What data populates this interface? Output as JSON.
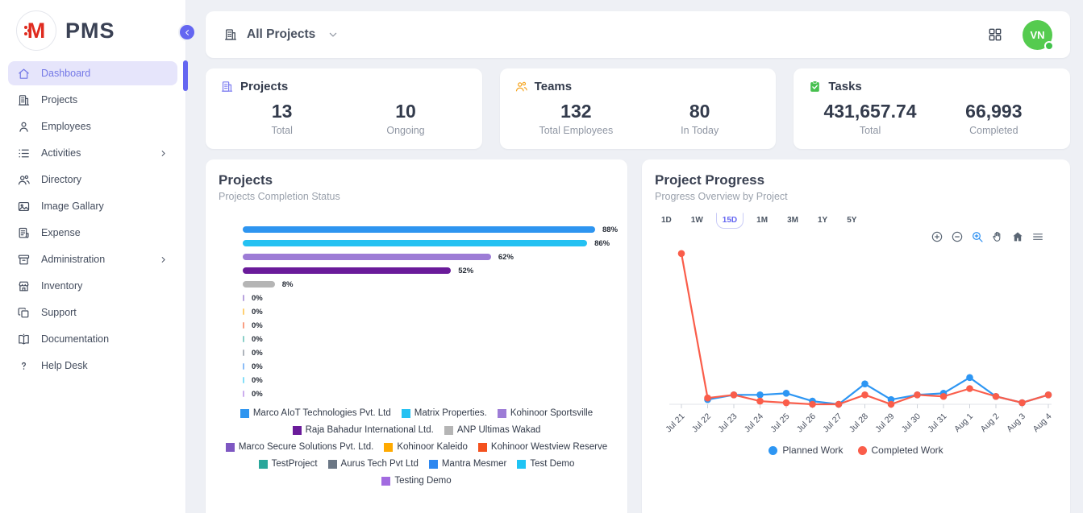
{
  "app": {
    "name": "PMS",
    "logo_letter": "M"
  },
  "sidebar": {
    "items": [
      {
        "label": "Dashboard",
        "icon": "home",
        "active": true,
        "expandable": false
      },
      {
        "label": "Projects",
        "icon": "building",
        "active": false,
        "expandable": false
      },
      {
        "label": "Employees",
        "icon": "person",
        "active": false,
        "expandable": false
      },
      {
        "label": "Activities",
        "icon": "list",
        "active": false,
        "expandable": true
      },
      {
        "label": "Directory",
        "icon": "people",
        "active": false,
        "expandable": false
      },
      {
        "label": "Image Gallary",
        "icon": "image",
        "active": false,
        "expandable": false
      },
      {
        "label": "Expense",
        "icon": "receipt",
        "active": false,
        "expandable": false
      },
      {
        "label": "Administration",
        "icon": "archive",
        "active": false,
        "expandable": true
      },
      {
        "label": "Inventory",
        "icon": "store",
        "active": false,
        "expandable": false
      },
      {
        "label": "Support",
        "icon": "copy",
        "active": false,
        "expandable": false
      },
      {
        "label": "Documentation",
        "icon": "book",
        "active": false,
        "expandable": false
      },
      {
        "label": "Help Desk",
        "icon": "help",
        "active": false,
        "expandable": false
      }
    ]
  },
  "topbar": {
    "filter_label": "All Projects",
    "avatar_initials": "VN"
  },
  "stats": [
    {
      "title": "Projects",
      "icon": "building",
      "icon_color": "#7b7bf0",
      "metrics": [
        {
          "value": "13",
          "label": "Total"
        },
        {
          "value": "10",
          "label": "Ongoing"
        }
      ]
    },
    {
      "title": "Teams",
      "icon": "people",
      "icon_color": "#f5a623",
      "metrics": [
        {
          "value": "132",
          "label": "Total Employees"
        },
        {
          "value": "80",
          "label": "In Today"
        }
      ]
    },
    {
      "title": "Tasks",
      "icon": "clipboard-check",
      "icon_color": "#47c04f",
      "metrics": [
        {
          "value": "431,657.74",
          "label": "Total"
        },
        {
          "value": "66,993",
          "label": "Completed"
        }
      ]
    }
  ],
  "progress_card": {
    "ranges": [
      "1D",
      "1W",
      "15D",
      "1M",
      "3M",
      "1Y",
      "5Y"
    ],
    "selected_range": "15D",
    "toolbar_icons": [
      "zoom-in",
      "zoom-out",
      "zoom-select",
      "pan",
      "home-solid",
      "menu"
    ],
    "toolbar_active": "zoom-select"
  },
  "chart_data": [
    {
      "type": "bar",
      "orientation": "horizontal",
      "title": "Projects",
      "subtitle": "Projects Completion Status",
      "categories": [
        "Marco AIoT Technologies Pvt. Ltd",
        "Matrix Properties.",
        "Kohinoor Sportsville",
        "Raja Bahadur International Ltd.",
        "ANP Ultimas Wakad",
        "Marco Secure Solutions Pvt. Ltd.",
        "Kohinoor Kaleido",
        "Kohinoor Westview Reserve",
        "TestProject",
        "Aurus Tech Pvt Ltd",
        "Mantra Mesmer",
        "Test Demo",
        "Testing Demo"
      ],
      "values": [
        88,
        86,
        62,
        52,
        8,
        0,
        0,
        0,
        0,
        0,
        0,
        0,
        0
      ],
      "value_labels": [
        "88%",
        "86%",
        "62%",
        "52%",
        "8%",
        "0%",
        "0%",
        "0%",
        "0%",
        "0%",
        "0%",
        "0%",
        "0%"
      ],
      "colors": [
        "#2e95f0",
        "#24c1f2",
        "#9d7cd6",
        "#6a1b9a",
        "#b5b5b5",
        "#7e57c2",
        "#ffaa00",
        "#f4511e",
        "#2aa79b",
        "#6b7785",
        "#2d87f0",
        "#1fc4f4",
        "#a26be0"
      ],
      "xlim": [
        0,
        100
      ],
      "legend_position": "bottom"
    },
    {
      "type": "line",
      "title": "Project Progress",
      "subtitle": "Progress Overview by Project",
      "x": [
        "Jul 21",
        "Jul 22",
        "Jul 23",
        "Jul 24",
        "Jul 25",
        "Jul 26",
        "Jul 27",
        "Jul 28",
        "Jul 29",
        "Jul 30",
        "Jul 31",
        "Aug 1",
        "Aug 2",
        "Aug 3",
        "Aug 4"
      ],
      "series": [
        {
          "name": "Planned Work",
          "color": "#2d96f3",
          "values": [
            null,
            3,
            6,
            6,
            7,
            2,
            0,
            13,
            3,
            6,
            7,
            17,
            5,
            1,
            6
          ]
        },
        {
          "name": "Completed Work",
          "color": "#fa5d4a",
          "values": [
            96,
            4,
            6,
            2,
            1,
            0,
            0,
            6,
            0,
            6,
            5,
            10,
            5,
            1,
            6
          ]
        }
      ],
      "ylim": [
        0,
        100
      ],
      "grid": false,
      "legend_position": "bottom"
    }
  ]
}
